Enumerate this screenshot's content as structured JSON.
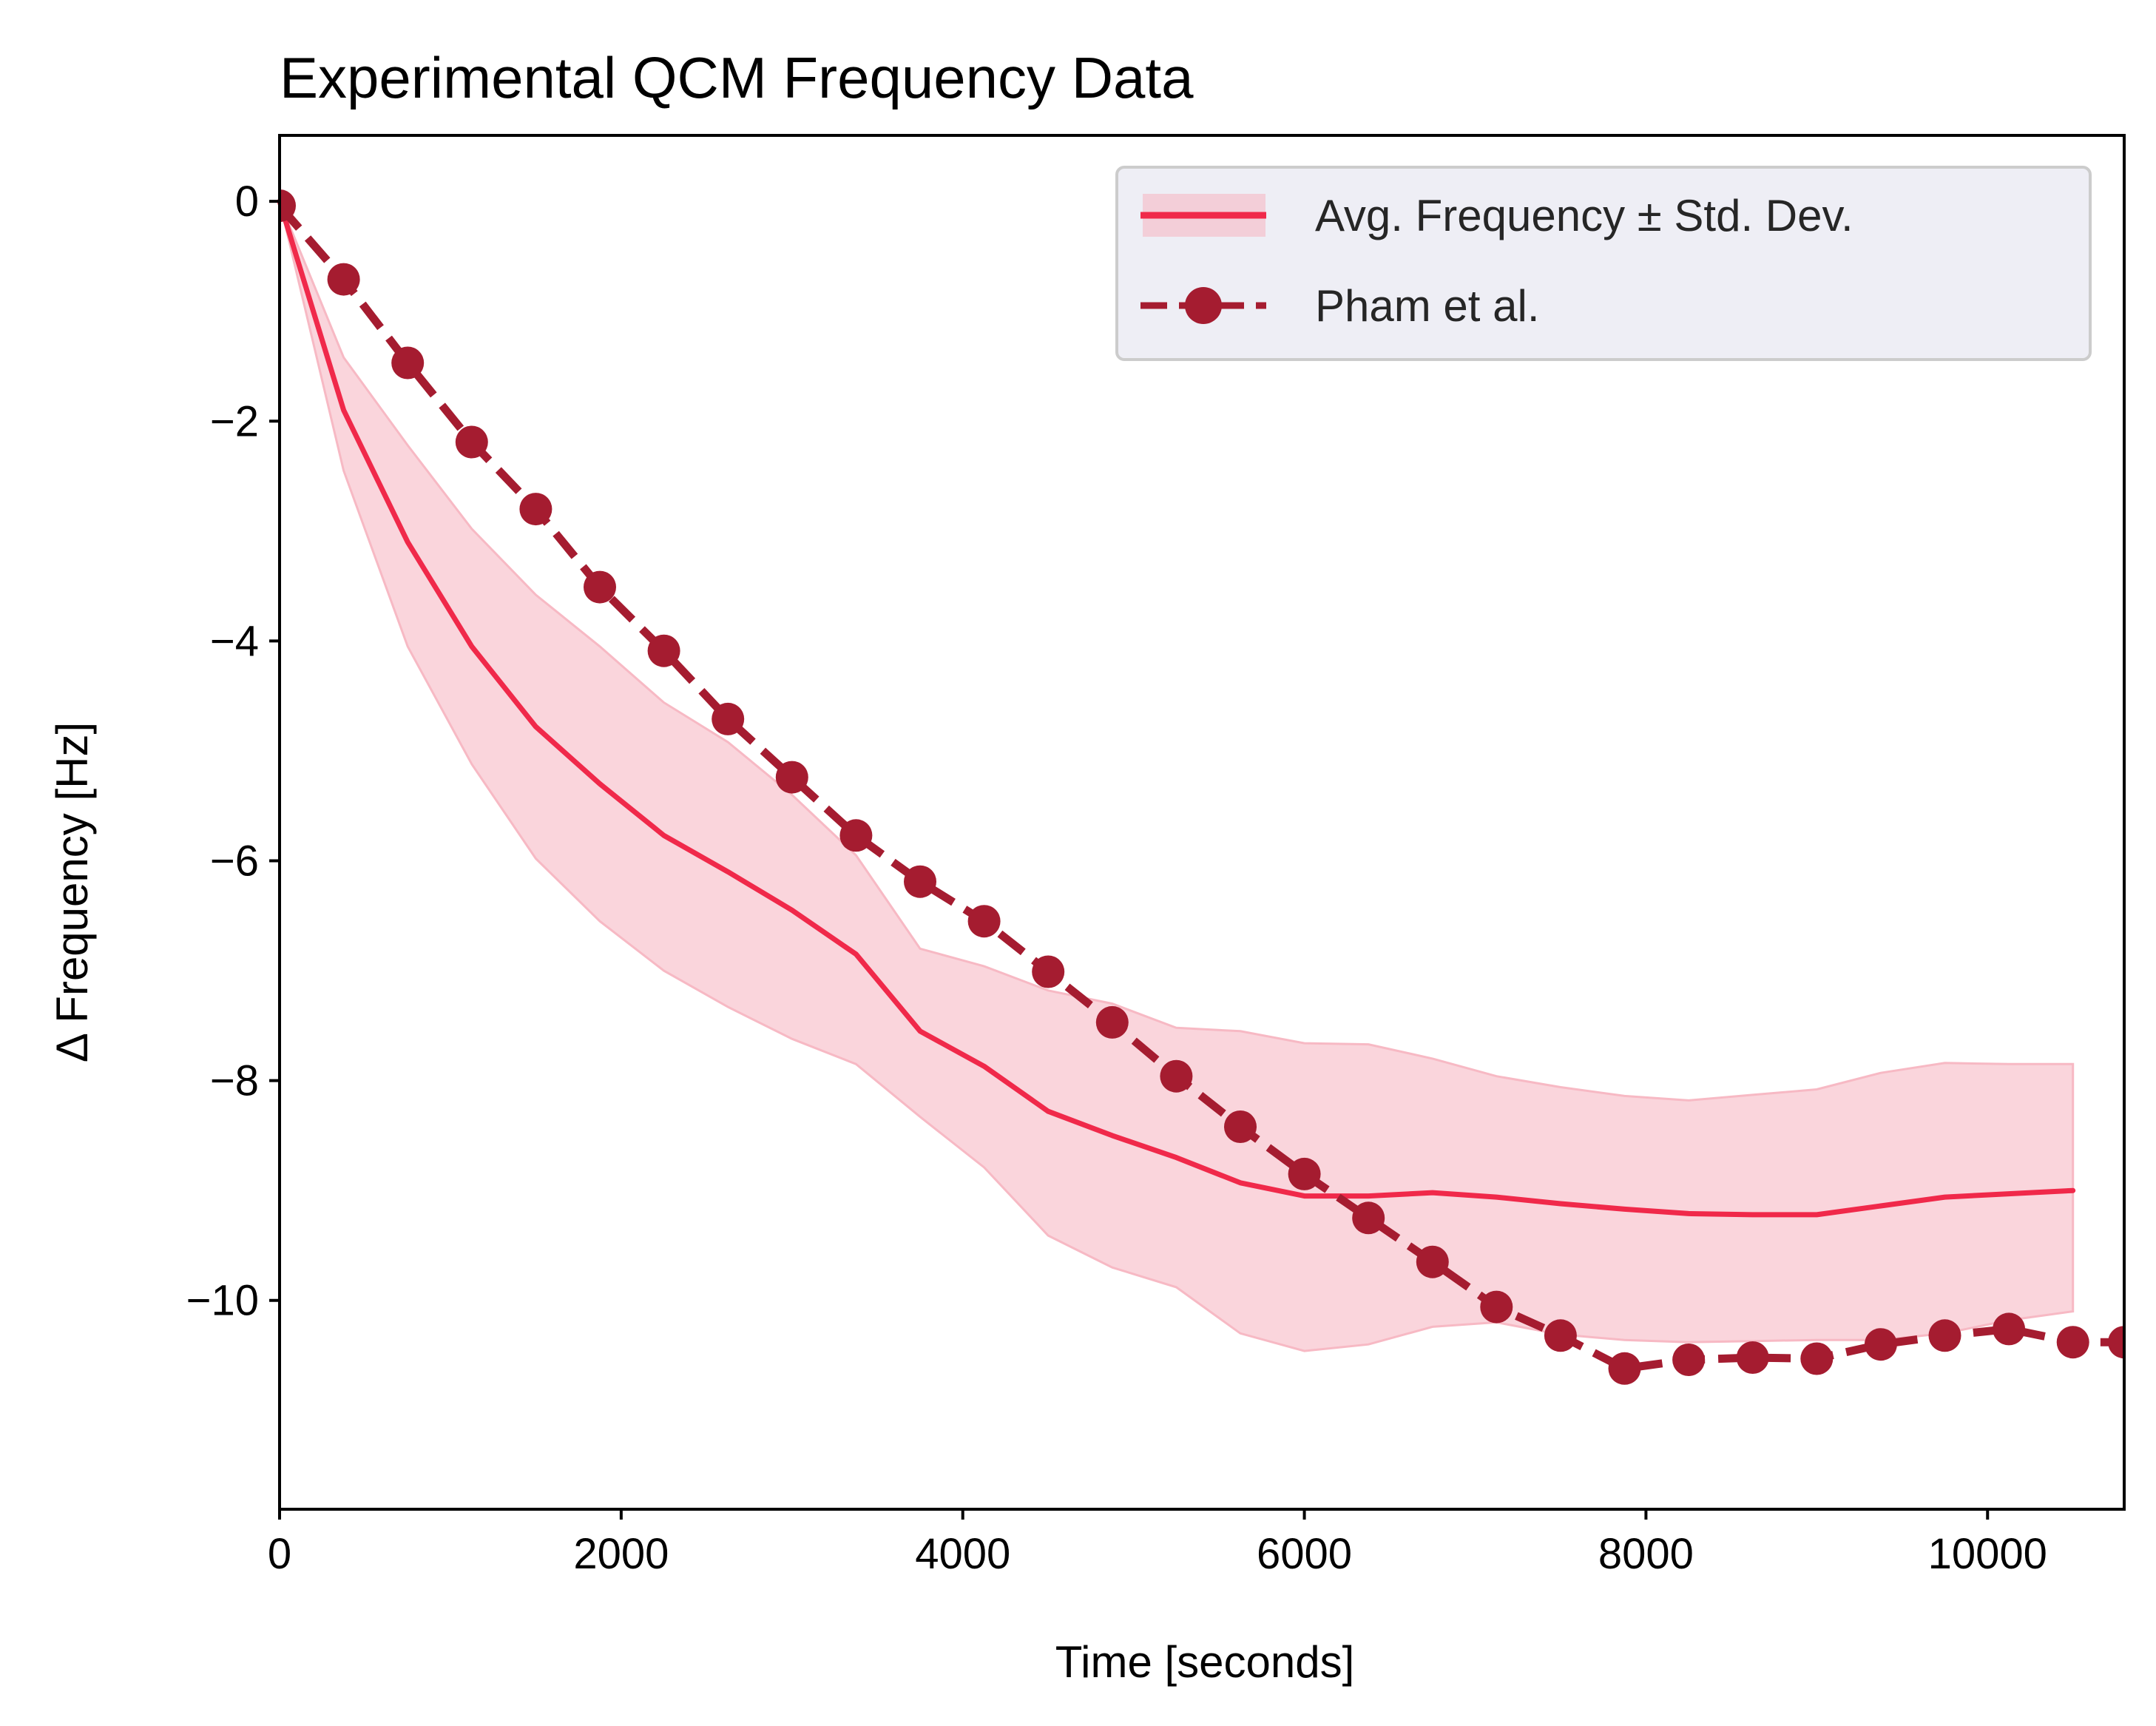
{
  "chart_data": {
    "type": "line",
    "title": "Experimental QCM Frequency Data",
    "xlabel": "Time [seconds]",
    "ylabel": "Δ Frequency [Hz]",
    "xlim": [
      0,
      10800
    ],
    "ylim": [
      -11.9,
      0.6
    ],
    "xticks": [
      0,
      2000,
      4000,
      6000,
      8000,
      10000
    ],
    "xtick_labels": [
      "0",
      "2000",
      "4000",
      "6000",
      "8000",
      "10000"
    ],
    "yticks": [
      0,
      -2,
      -4,
      -6,
      -8,
      -10
    ],
    "ytick_labels": [
      "0",
      "−2",
      "−4",
      "−6",
      "−8",
      "−10"
    ],
    "grid": false,
    "legend_position": "top-right",
    "series": [
      {
        "name": "Avg. Frequency ± Std. Dev.",
        "style": "solid line with shaded band",
        "color": "#f0294a",
        "band_color": "#f7b9c4",
        "x": [
          0,
          375,
          750,
          1125,
          1500,
          1875,
          2250,
          2625,
          3000,
          3375,
          3750,
          4125,
          4500,
          4875,
          5250,
          5625,
          6000,
          6375,
          6750,
          7125,
          7500,
          7875,
          8250,
          8625,
          9000,
          9375,
          9750,
          10125,
          10500
        ],
        "y": [
          0,
          -1.9,
          -3.1,
          -4.05,
          -4.78,
          -5.3,
          -5.77,
          -6.1,
          -6.45,
          -6.85,
          -7.55,
          -7.87,
          -8.28,
          -8.5,
          -8.7,
          -8.93,
          -9.05,
          -9.05,
          -9.02,
          -9.06,
          -9.12,
          -9.17,
          -9.21,
          -9.22,
          -9.22,
          -9.14,
          -9.06,
          -9.03,
          -9.0
        ],
        "y_upper": [
          0,
          -1.42,
          -2.22,
          -2.98,
          -3.58,
          -4.05,
          -4.56,
          -4.92,
          -5.4,
          -5.95,
          -6.8,
          -6.96,
          -7.18,
          -7.3,
          -7.52,
          -7.55,
          -7.66,
          -7.67,
          -7.8,
          -7.96,
          -8.06,
          -8.14,
          -8.18,
          -8.13,
          -8.08,
          -7.93,
          -7.84,
          -7.85,
          -7.85
        ],
        "y_lower": [
          0,
          -2.45,
          -4.05,
          -5.12,
          -5.98,
          -6.55,
          -7.0,
          -7.33,
          -7.62,
          -7.85,
          -8.33,
          -8.79,
          -9.41,
          -9.7,
          -9.88,
          -10.3,
          -10.46,
          -10.4,
          -10.24,
          -10.2,
          -10.31,
          -10.36,
          -10.38,
          -10.37,
          -10.36,
          -10.36,
          -10.3,
          -10.18,
          -10.1
        ]
      },
      {
        "name": "Pham et al.",
        "style": "dashed line with circle markers",
        "color": "#a51c30",
        "x": [
          0,
          375,
          750,
          1125,
          1500,
          1875,
          2250,
          2625,
          3000,
          3375,
          3750,
          4125,
          4500,
          4875,
          5250,
          5625,
          6000,
          6375,
          6750,
          7125,
          7500,
          7875,
          8250,
          8625,
          9000,
          9375,
          9750,
          10125,
          10500,
          10800
        ],
        "y": [
          -0.04,
          -0.71,
          -1.47,
          -2.19,
          -2.8,
          -3.51,
          -4.09,
          -4.71,
          -5.24,
          -5.77,
          -6.19,
          -6.55,
          -7.01,
          -7.47,
          -7.96,
          -8.42,
          -8.85,
          -9.25,
          -9.65,
          -10.06,
          -10.32,
          -10.62,
          -10.54,
          -10.52,
          -10.53,
          -10.4,
          -10.32,
          -10.26,
          -10.38,
          -10.38
        ]
      }
    ]
  }
}
